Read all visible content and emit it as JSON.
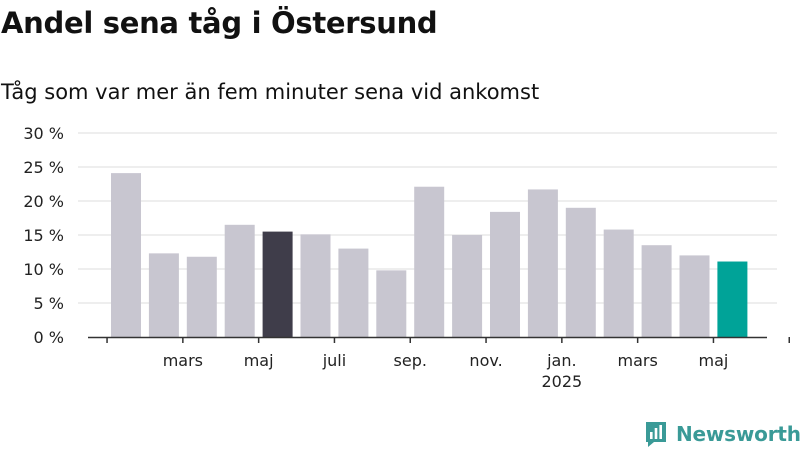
{
  "title": "Andel sena tåg i Östersund",
  "subtitle": "Tåg som var mer än fem minuter sena vid ankomst",
  "brand": {
    "name": "Newsworthy",
    "color": "#3a9a97",
    "icon": "newsworthy-chart-icon"
  },
  "colors": {
    "default": "#c8c6d0",
    "highlight_dark": "#3f3d4a",
    "highlight_latest": "#00a398",
    "grid": "#dddddd",
    "axis": "#333333"
  },
  "chart_data": {
    "type": "bar",
    "title": "Andel sena tåg i Östersund",
    "subtitle": "Tåg som var mer än fem minuter sena vid ankomst",
    "xlabel": "",
    "ylabel": "",
    "ylim": [
      0,
      30
    ],
    "grid": true,
    "yticks": [
      {
        "value": 0,
        "label": "0 %"
      },
      {
        "value": 5,
        "label": "5 %"
      },
      {
        "value": 10,
        "label": "10 %"
      },
      {
        "value": 15,
        "label": "15 %"
      },
      {
        "value": 20,
        "label": "20 %"
      },
      {
        "value": 25,
        "label": "25 %"
      },
      {
        "value": 30,
        "label": "30 %"
      }
    ],
    "xtick_labels": [
      {
        "bar_index": 1.5,
        "label": "mars"
      },
      {
        "bar_index": 3.5,
        "label": "maj"
      },
      {
        "bar_index": 5.5,
        "label": "juli"
      },
      {
        "bar_index": 7.5,
        "label": "sep."
      },
      {
        "bar_index": 9.5,
        "label": "nov."
      },
      {
        "bar_index": 11.5,
        "label": "jan.",
        "sublabel": "2025"
      },
      {
        "bar_index": 13.5,
        "label": "mars"
      },
      {
        "bar_index": 15.5,
        "label": "maj"
      }
    ],
    "x": [
      "2024-02",
      "2024-03",
      "2024-04",
      "2024-05",
      "2024-06",
      "2024-07",
      "2024-08",
      "2024-09",
      "2024-10",
      "2024-11",
      "2024-12",
      "2025-01",
      "2025-02",
      "2025-03",
      "2025-04",
      "2025-05",
      "2025-06"
    ],
    "values": [
      24.1,
      12.3,
      11.8,
      16.5,
      15.5,
      15.1,
      13.0,
      9.8,
      22.1,
      15.0,
      18.4,
      21.7,
      19.0,
      15.8,
      13.5,
      12.0,
      11.1
    ],
    "highlight": {
      "4": "highlight_dark",
      "16": "highlight_latest"
    }
  }
}
